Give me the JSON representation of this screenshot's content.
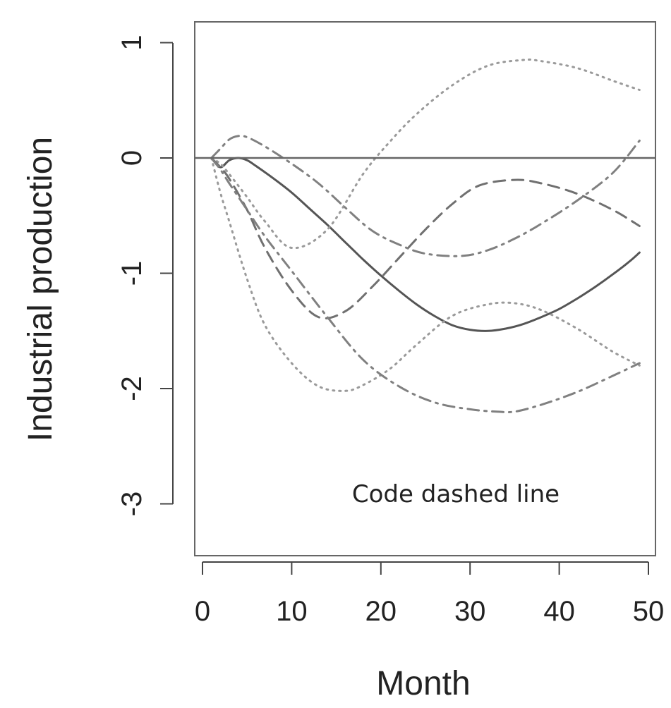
{
  "chart_data": {
    "type": "line",
    "title": "",
    "xlabel": "Month",
    "ylabel": "Industrial production",
    "xlim": [
      0,
      50
    ],
    "ylim": [
      -3.4,
      1.2
    ],
    "x_ticks": [
      "0",
      "10",
      "20",
      "30",
      "40",
      "50"
    ],
    "y_ticks": [
      "1",
      "0",
      "-1",
      "-2",
      "-3"
    ],
    "grid": false,
    "reference_line": {
      "y": 0
    },
    "annotation": "Code dashed line",
    "colors": {
      "line": "#555555",
      "dotted": "#9a9a9a",
      "dashed": "#707070",
      "dashdot": "#808080",
      "frame": "#666666"
    },
    "series": [
      {
        "style": "solid",
        "x": [
          1,
          2,
          3,
          4,
          5,
          6,
          8,
          10,
          12,
          14,
          16,
          18,
          20,
          22,
          24,
          26,
          28,
          30,
          32,
          34,
          36,
          38,
          40,
          42,
          44,
          46,
          48,
          49
        ],
        "y": [
          0,
          -0.08,
          -0.02,
          0,
          -0.02,
          -0.07,
          -0.18,
          -0.3,
          -0.44,
          -0.58,
          -0.73,
          -0.88,
          -1.02,
          -1.15,
          -1.27,
          -1.37,
          -1.45,
          -1.49,
          -1.5,
          -1.48,
          -1.44,
          -1.38,
          -1.31,
          -1.22,
          -1.12,
          -1.01,
          -0.89,
          -0.82
        ]
      },
      {
        "style": "dotted",
        "x": [
          1,
          2,
          3,
          5,
          7,
          10,
          14,
          18,
          21,
          24,
          28,
          32,
          36,
          38,
          42,
          46,
          49
        ],
        "y": [
          0,
          -0.05,
          -0.14,
          -0.34,
          -0.55,
          -0.78,
          -0.62,
          -0.14,
          0.14,
          0.38,
          0.63,
          0.8,
          0.85,
          0.84,
          0.78,
          0.67,
          0.59
        ]
      },
      {
        "style": "dotted",
        "x": [
          1,
          2,
          3,
          5,
          7,
          10,
          13,
          16,
          18,
          21,
          24,
          28,
          32,
          35,
          38,
          42,
          46,
          49
        ],
        "y": [
          0,
          -0.3,
          -0.55,
          -1.05,
          -1.45,
          -1.78,
          -1.98,
          -2.02,
          -1.97,
          -1.83,
          -1.62,
          -1.37,
          -1.27,
          -1.26,
          -1.32,
          -1.48,
          -1.68,
          -1.8
        ]
      },
      {
        "style": "dashed",
        "x": [
          1,
          2,
          3,
          5,
          7,
          10,
          13,
          16,
          19,
          22,
          25,
          28,
          31,
          35,
          38,
          42,
          46,
          49
        ],
        "y": [
          0,
          -0.08,
          -0.18,
          -0.45,
          -0.78,
          -1.15,
          -1.38,
          -1.33,
          -1.12,
          -0.87,
          -0.62,
          -0.4,
          -0.24,
          -0.19,
          -0.22,
          -0.31,
          -0.45,
          -0.59
        ]
      },
      {
        "style": "dashdot",
        "x": [
          1,
          2,
          3,
          4,
          5,
          7,
          10,
          13,
          16,
          19,
          22,
          25,
          29,
          32,
          35,
          38,
          42,
          46,
          49
        ],
        "y": [
          0,
          0.08,
          0.16,
          0.19,
          0.18,
          0.1,
          -0.05,
          -0.22,
          -0.43,
          -0.63,
          -0.75,
          -0.83,
          -0.85,
          -0.8,
          -0.7,
          -0.57,
          -0.37,
          -0.13,
          0.15
        ]
      },
      {
        "style": "dashdot",
        "x": [
          1,
          2,
          3,
          5,
          7,
          10,
          14,
          18,
          22,
          26,
          30,
          33,
          35,
          38,
          42,
          46,
          49
        ],
        "y": [
          0,
          -0.1,
          -0.22,
          -0.45,
          -0.68,
          -0.98,
          -1.38,
          -1.75,
          -1.98,
          -2.12,
          -2.18,
          -2.2,
          -2.2,
          -2.14,
          -2.03,
          -1.89,
          -1.78
        ]
      }
    ]
  }
}
